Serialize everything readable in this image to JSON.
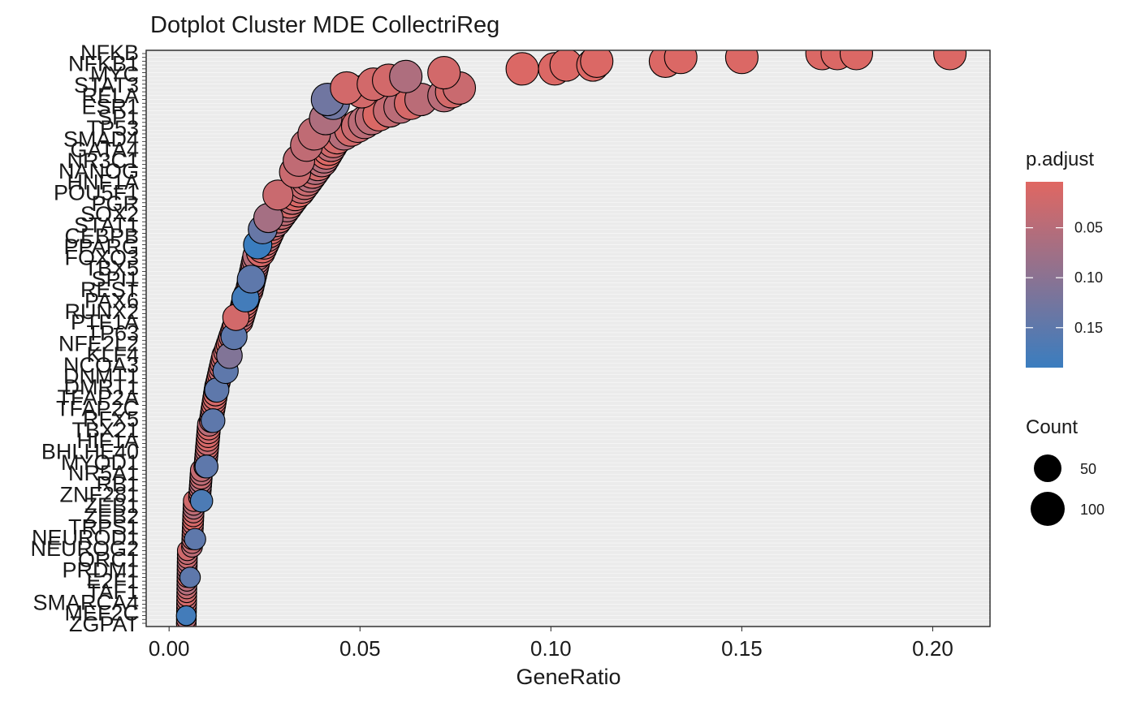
{
  "chart_data": {
    "type": "scatter",
    "title": "Dotplot Cluster MDE CollectriReg",
    "xlabel": "GeneRatio",
    "ylabel": "",
    "xlim": [
      -0.006,
      0.215
    ],
    "x_ticks": [
      0.0,
      0.05,
      0.1,
      0.15,
      0.2
    ],
    "x_tick_labels": [
      "0.00",
      "0.05",
      "0.10",
      "0.15",
      "0.20"
    ],
    "y_labels_visible": [
      "NFKB",
      "NFKB1",
      "MYC",
      "STAT3",
      "RELA",
      "ESR1",
      "SP1",
      "TP53",
      "SMAD4",
      "GATA4",
      "NR3C1",
      "NANOG",
      "HNF1A",
      "POU5F1",
      "PGR",
      "SOX2",
      "STAT1",
      "CEBPB",
      "PPARG",
      "FOXO3",
      "TBX5",
      "SPI1",
      "REST",
      "PAX6",
      "RUNX2",
      "PTF1A",
      "TP63",
      "NFE2L2",
      "KLF4",
      "NCOA3",
      "DNMT1",
      "DMRT1",
      "TFAP2A",
      "TFAP2C",
      "RFX5",
      "TBX21",
      "HIF1A",
      "BHLHE40",
      "MYOD1",
      "NR5A1",
      "RB1",
      "ZNF281",
      "ZEB1",
      "ZEB2",
      "TRPS1",
      "NEUROD1",
      "NEUROG2",
      "ORC1",
      "PRDM1",
      "E2F1",
      "TAF1",
      "SMARCA4",
      "MEF2C",
      "ZGPAT"
    ],
    "y_categories_count": 150,
    "color_legend": {
      "title": "p.adjust",
      "ticks": [
        0.05,
        0.1,
        0.15
      ],
      "tick_labels": [
        "0.05",
        "0.10",
        "0.15"
      ],
      "range": [
        0.004,
        0.19
      ],
      "low_color": "#e06762",
      "high_color": "#3a7dbf"
    },
    "size_legend": {
      "title": "Count",
      "values": [
        50,
        100
      ],
      "labels": [
        "50",
        "100"
      ]
    },
    "point_segments": [
      {
        "i0": 0,
        "i1": 19,
        "x0": 0.0045,
        "x1": 0.0048
      },
      {
        "i0": 20,
        "i1": 32,
        "x0": 0.006,
        "x1": 0.0065
      },
      {
        "i0": 33,
        "i1": 40,
        "x0": 0.008,
        "x1": 0.0085
      },
      {
        "i0": 41,
        "i1": 52,
        "x0": 0.0095,
        "x1": 0.0105
      },
      {
        "i0": 53,
        "i1": 62,
        "x0": 0.011,
        "x1": 0.0125
      },
      {
        "i0": 63,
        "i1": 70,
        "x0": 0.0128,
        "x1": 0.0145
      },
      {
        "i0": 71,
        "i1": 78,
        "x0": 0.015,
        "x1": 0.0175
      },
      {
        "i0": 79,
        "i1": 86,
        "x0": 0.0185,
        "x1": 0.0205
      },
      {
        "i0": 87,
        "i1": 96,
        "x0": 0.021,
        "x1": 0.023
      },
      {
        "i0": 97,
        "i1": 104,
        "x0": 0.024,
        "x1": 0.027
      },
      {
        "i0": 105,
        "i1": 112,
        "x0": 0.028,
        "x1": 0.033
      },
      {
        "i0": 113,
        "i1": 120,
        "x0": 0.034,
        "x1": 0.039
      },
      {
        "i0": 121,
        "i1": 126,
        "x0": 0.04,
        "x1": 0.043
      },
      {
        "i0": 127,
        "i1": 132,
        "x0": 0.044,
        "x1": 0.053
      },
      {
        "i0": 133,
        "i1": 137,
        "x0": 0.055,
        "x1": 0.066
      },
      {
        "i0": 138,
        "i1": 140,
        "x0": 0.072,
        "x1": 0.076
      }
    ],
    "points": [
      {
        "i": 2,
        "x": 0.0045,
        "p": 0.18
      },
      {
        "i": 12,
        "x": 0.0055,
        "p": 0.15
      },
      {
        "i": 22,
        "x": 0.0068,
        "p": 0.15
      },
      {
        "i": 32,
        "x": 0.0085,
        "p": 0.17
      },
      {
        "i": 41,
        "x": 0.0098,
        "p": 0.15
      },
      {
        "i": 53,
        "x": 0.0115,
        "p": 0.15
      },
      {
        "i": 61,
        "x": 0.0125,
        "p": 0.15
      },
      {
        "i": 66,
        "x": 0.0148,
        "p": 0.15
      },
      {
        "i": 70,
        "x": 0.0158,
        "p": 0.11
      },
      {
        "i": 75,
        "x": 0.017,
        "p": 0.15
      },
      {
        "i": 80,
        "x": 0.0175,
        "p": 0.02
      },
      {
        "i": 85,
        "x": 0.02,
        "p": 0.18
      },
      {
        "i": 90,
        "x": 0.0215,
        "p": 0.15
      },
      {
        "i": 99,
        "x": 0.0232,
        "p": 0.19
      },
      {
        "i": 103,
        "x": 0.0245,
        "p": 0.14
      },
      {
        "i": 106,
        "x": 0.026,
        "p": 0.07
      },
      {
        "i": 112,
        "x": 0.0285,
        "p": 0.03
      },
      {
        "i": 118,
        "x": 0.033,
        "p": 0.03
      },
      {
        "i": 121,
        "x": 0.034,
        "p": 0.04
      },
      {
        "i": 125,
        "x": 0.036,
        "p": 0.04
      },
      {
        "i": 128,
        "x": 0.038,
        "p": 0.04
      },
      {
        "i": 132,
        "x": 0.041,
        "p": 0.06
      },
      {
        "i": 136,
        "x": 0.043,
        "p": 0.13
      },
      {
        "i": 137,
        "x": 0.0415,
        "p": 0.13
      },
      {
        "i": 139,
        "x": 0.0505,
        "p": 0.02
      },
      {
        "i": 140,
        "x": 0.0465,
        "p": 0.02
      },
      {
        "i": 141,
        "x": 0.0535,
        "p": 0.02
      },
      {
        "i": 142,
        "x": 0.0575,
        "p": 0.02
      },
      {
        "i": 143,
        "x": 0.062,
        "p": 0.06
      },
      {
        "i": 144,
        "x": 0.072,
        "p": 0.02
      },
      {
        "i": 145,
        "x": 0.0925,
        "p": 0.01
      },
      {
        "i": 145,
        "x": 0.101,
        "p": 0.01
      },
      {
        "i": 146,
        "x": 0.104,
        "p": 0.01
      },
      {
        "i": 146,
        "x": 0.111,
        "p": 0.01
      },
      {
        "i": 147,
        "x": 0.112,
        "p": 0.01
      },
      {
        "i": 147,
        "x": 0.13,
        "p": 0.01
      },
      {
        "i": 148,
        "x": 0.134,
        "p": 0.01
      },
      {
        "i": 148,
        "x": 0.15,
        "p": 0.01
      },
      {
        "i": 149,
        "x": 0.171,
        "p": 0.01
      },
      {
        "i": 149,
        "x": 0.175,
        "p": 0.01
      },
      {
        "i": 149,
        "x": 0.18,
        "p": 0.01
      },
      {
        "i": 149,
        "x": 0.2045,
        "p": 0.01
      }
    ]
  }
}
